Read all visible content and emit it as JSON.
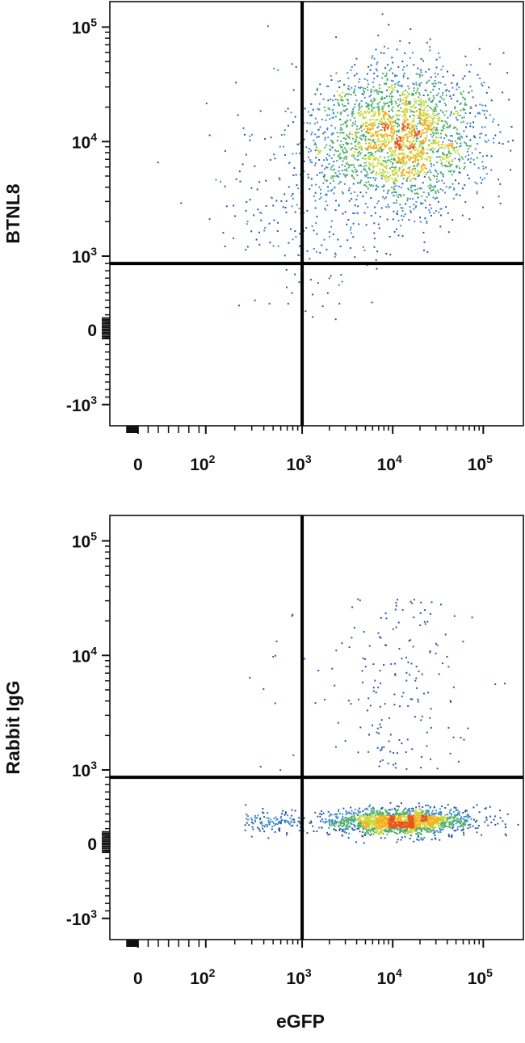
{
  "chart_data": [
    {
      "type": "scatter",
      "style": "flow-cytometry-density-dot-plot",
      "xlabel": "",
      "ylabel": "BTNL8",
      "xscale": "biexponential",
      "yscale": "biexponential",
      "xlim": [
        -200,
        200000
      ],
      "ylim": [
        -2000,
        250000
      ],
      "xticks": [
        {
          "value": 0,
          "base": "0",
          "exp": ""
        },
        {
          "value": 100,
          "base": "10",
          "exp": "2"
        },
        {
          "value": 1000,
          "base": "10",
          "exp": "3"
        },
        {
          "value": 10000,
          "base": "10",
          "exp": "4"
        },
        {
          "value": 100000,
          "base": "10",
          "exp": "5"
        }
      ],
      "yticks": [
        {
          "value": -1000,
          "base": "-10",
          "exp": "3"
        },
        {
          "value": 0,
          "base": "0",
          "exp": ""
        },
        {
          "value": 1000,
          "base": "10",
          "exp": "3"
        },
        {
          "value": 10000,
          "base": "10",
          "exp": "4"
        },
        {
          "value": 100000,
          "base": "10",
          "exp": "5"
        }
      ],
      "gate": {
        "x": 1000,
        "y": 900
      },
      "population": {
        "center_x": 12000,
        "center_y": 11000,
        "spread_x_decades": 0.45,
        "spread_y_decades": 0.3
      },
      "colorscale": [
        "#2b57a6",
        "#3f8ec9",
        "#4fb06a",
        "#c7d83a",
        "#f2b21c",
        "#e8531c"
      ]
    },
    {
      "type": "scatter",
      "style": "flow-cytometry-density-dot-plot",
      "xlabel": "eGFP",
      "ylabel": "Rabbit IgG",
      "xscale": "biexponential",
      "yscale": "biexponential",
      "xlim": [
        -200,
        200000
      ],
      "ylim": [
        -2000,
        250000
      ],
      "xticks": [
        {
          "value": 0,
          "base": "0",
          "exp": ""
        },
        {
          "value": 100,
          "base": "10",
          "exp": "2"
        },
        {
          "value": 1000,
          "base": "10",
          "exp": "3"
        },
        {
          "value": 10000,
          "base": "10",
          "exp": "4"
        },
        {
          "value": 100000,
          "base": "10",
          "exp": "5"
        }
      ],
      "yticks": [
        {
          "value": -1000,
          "base": "-10",
          "exp": "3"
        },
        {
          "value": 0,
          "base": "0",
          "exp": ""
        },
        {
          "value": 1000,
          "base": "10",
          "exp": "3"
        },
        {
          "value": 10000,
          "base": "10",
          "exp": "4"
        },
        {
          "value": 100000,
          "base": "10",
          "exp": "5"
        }
      ],
      "gate": {
        "x": 1000,
        "y": 900
      },
      "population": {
        "center_x": 12000,
        "center_y": 300,
        "spread_x_decades": 0.4,
        "spread_y_decades": 0.12
      },
      "colorscale": [
        "#2b57a6",
        "#3f8ec9",
        "#4fb06a",
        "#c7d83a",
        "#f2b21c",
        "#e8531c"
      ]
    }
  ]
}
